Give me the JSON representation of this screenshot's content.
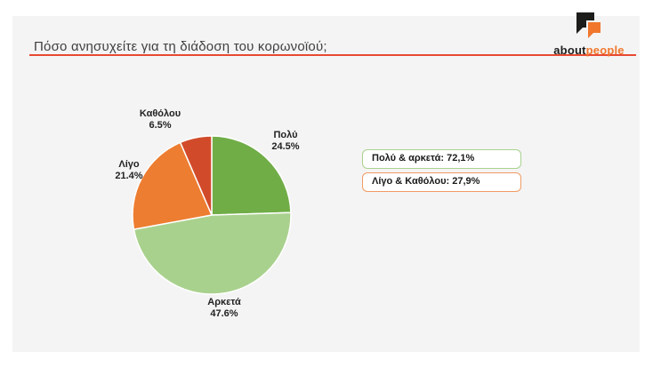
{
  "header": {
    "title": "Πόσο ανησυχείτε για τη διάδοση του κορωνοϊού;",
    "logo": {
      "black": "about",
      "orange": "people"
    }
  },
  "colors": {
    "rule": "#e84a32",
    "card_bg": "#f4f4f4",
    "logo_black": "#1d1d1b",
    "logo_orange": "#f0772d"
  },
  "chart_data": {
    "type": "pie",
    "title": "Πόσο ανησυχείτε για τη διάδοση του κορωνοϊού;",
    "unit": "%",
    "direction": "clockwise",
    "start_angle_deg": 0,
    "legend_position": "outside-labels",
    "slices": [
      {
        "label": "Πολύ",
        "value": 24.5,
        "display": "24.5%",
        "color": "#70ad47"
      },
      {
        "label": "Αρκετά",
        "value": 47.6,
        "display": "47.6%",
        "color": "#a9d18e"
      },
      {
        "label": "Λίγο",
        "value": 21.4,
        "display": "21.4%",
        "color": "#ed7d31"
      },
      {
        "label": "Καθόλου",
        "value": 6.5,
        "display": "6.5%",
        "color": "#d14b2b"
      }
    ],
    "summary_boxes": [
      {
        "label": "Πολύ & αρκετά: 72,1%",
        "border_color": "#a9d18e"
      },
      {
        "label": "Λίγο & Καθόλου: 27,9%",
        "border_color": "#f09a64"
      }
    ]
  }
}
